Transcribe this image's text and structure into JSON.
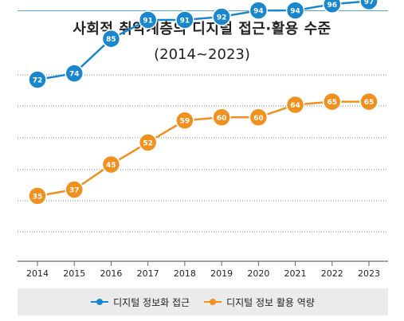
{
  "title": "사회적 취약계층의 디지털 접근·활용 수준",
  "subtitle": "(2014~2023)",
  "colors": {
    "blue": "#1a86cc",
    "orange": "#f0901e",
    "grid": "#7a7a7a"
  },
  "chart_data": {
    "type": "line",
    "title": "사회적 취약계층의 디지털 접근·활용 수준",
    "subtitle": "(2014~2023)",
    "xlabel": "",
    "ylabel": "",
    "categories": [
      "2014",
      "2015",
      "2016",
      "2017",
      "2018",
      "2019",
      "2020",
      "2021",
      "2022",
      "2023"
    ],
    "ylim": [
      20,
      110
    ],
    "grid": true,
    "legend_position": "bottom",
    "series": [
      {
        "name": "디지털 정보화 접근",
        "color": "#1a86cc",
        "values": [
          72,
          74,
          85,
          91,
          91,
          92,
          94,
          94,
          96,
          97
        ]
      },
      {
        "name": "디지털 정보 활용 역량",
        "color": "#f0901e",
        "values": [
          35,
          37,
          45,
          52,
          59,
          60,
          60,
          64,
          65,
          65
        ]
      }
    ]
  }
}
